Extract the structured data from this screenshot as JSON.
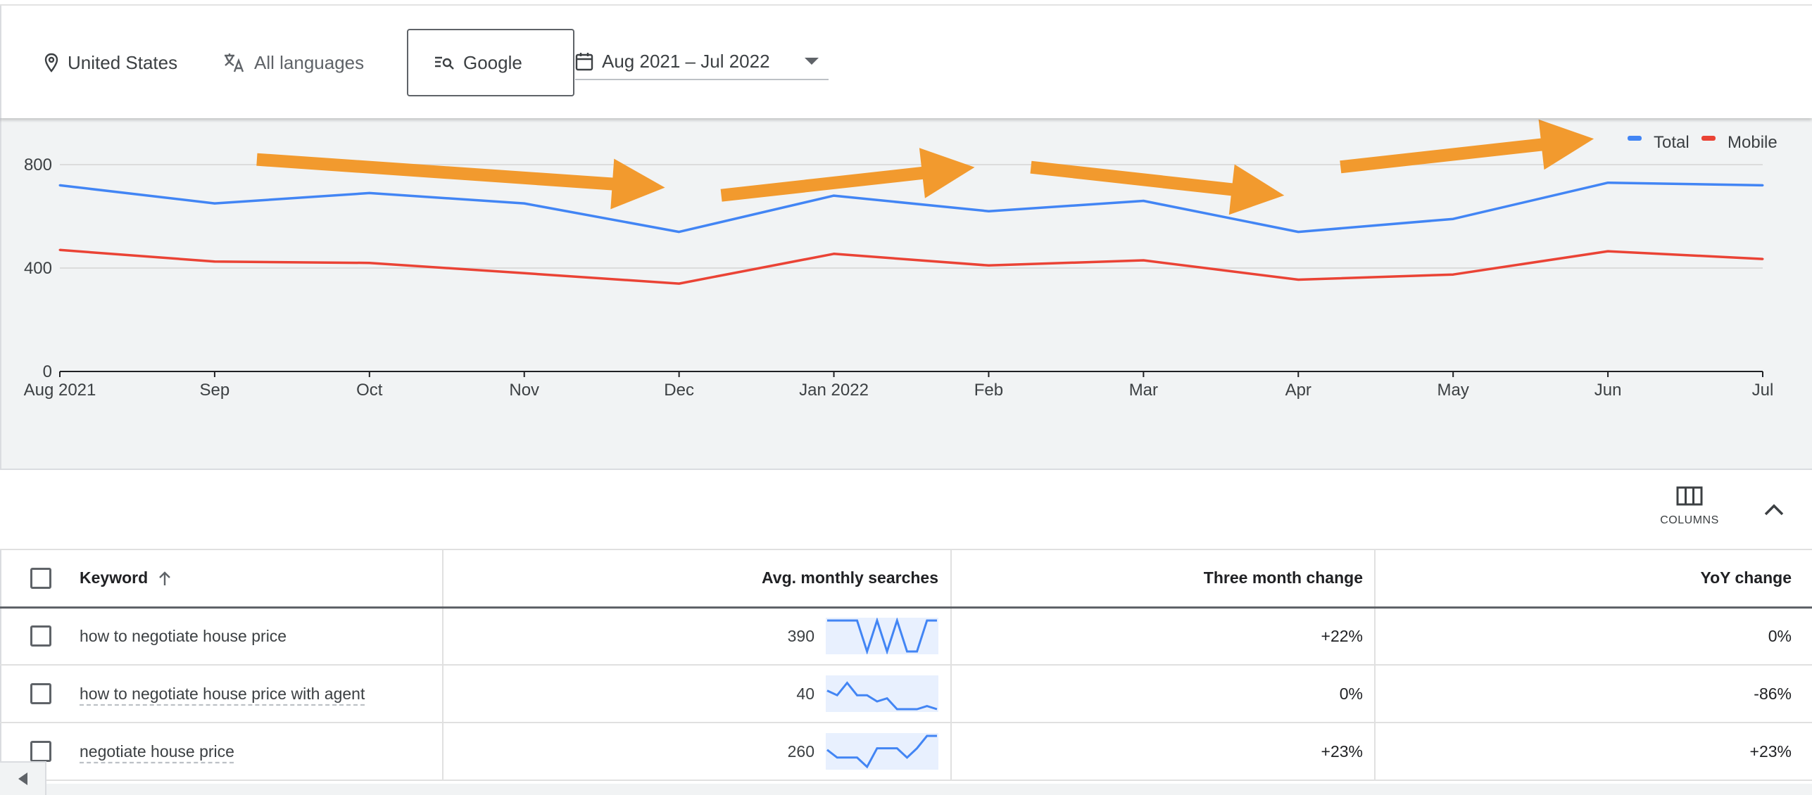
{
  "filters": {
    "location": "United States",
    "language": "All languages",
    "search_engine": "Google",
    "date_range": "Aug 2021 – Jul 2022"
  },
  "chart_data": {
    "type": "line",
    "x": [
      "Aug 2021",
      "Sep",
      "Oct",
      "Nov",
      "Dec",
      "Jan 2022",
      "Feb",
      "Mar",
      "Apr",
      "May",
      "Jun",
      "Jul"
    ],
    "series": [
      {
        "name": "Total",
        "color": "#4285f4",
        "values": [
          720,
          650,
          690,
          650,
          540,
          680,
          620,
          660,
          540,
          590,
          730,
          720
        ]
      },
      {
        "name": "Mobile",
        "color": "#ea4335",
        "values": [
          470,
          425,
          420,
          380,
          340,
          455,
          410,
          430,
          355,
          375,
          465,
          435
        ]
      }
    ],
    "y_ticks": [
      0,
      400,
      800
    ],
    "ylim": [
      0,
      900
    ],
    "legend_position": "top-right",
    "grid": true,
    "annotations": [
      {
        "type": "arrow",
        "color": "#f29a2e",
        "direction": "down",
        "from_index": 1,
        "to_index": 4
      },
      {
        "type": "arrow",
        "color": "#f29a2e",
        "direction": "up",
        "from_index": 4,
        "to_index": 6
      },
      {
        "type": "arrow",
        "color": "#f29a2e",
        "direction": "down",
        "from_index": 6,
        "to_index": 8
      },
      {
        "type": "arrow",
        "color": "#f29a2e",
        "direction": "up",
        "from_index": 8,
        "to_index": 10
      }
    ]
  },
  "toolbar": {
    "columns_label": "COLUMNS"
  },
  "table": {
    "headers": {
      "keyword": "Keyword",
      "avg_monthly": "Avg. monthly searches",
      "three_month": "Three month change",
      "yoy": "YoY change"
    },
    "rows": [
      {
        "keyword": "how to negotiate house price",
        "avg": "390",
        "three_month": "+22%",
        "yoy": "0%",
        "trend": [
          1,
          1,
          1,
          1,
          0,
          1,
          0,
          1,
          0,
          0,
          1,
          1
        ],
        "dotted": false
      },
      {
        "keyword": "how to negotiate house price with agent",
        "avg": "40",
        "three_month": "0%",
        "yoy": "-86%",
        "trend": [
          0.6,
          0.45,
          0.85,
          0.45,
          0.45,
          0.25,
          0.35,
          0.0,
          0.0,
          0.0,
          0.1,
          0.0
        ],
        "dotted": true
      },
      {
        "keyword": "negotiate house price",
        "avg": "260",
        "three_month": "+23%",
        "yoy": "+23%",
        "trend": [
          0.55,
          0.3,
          0.3,
          0.3,
          0.0,
          0.6,
          0.6,
          0.6,
          0.3,
          0.6,
          1,
          1
        ],
        "dotted": true
      }
    ]
  },
  "colors": {
    "accent_blue": "#4285f4",
    "mobile_red": "#ea4335",
    "annotation_orange": "#f29a2e",
    "chart_background": "#f1f3f4"
  }
}
